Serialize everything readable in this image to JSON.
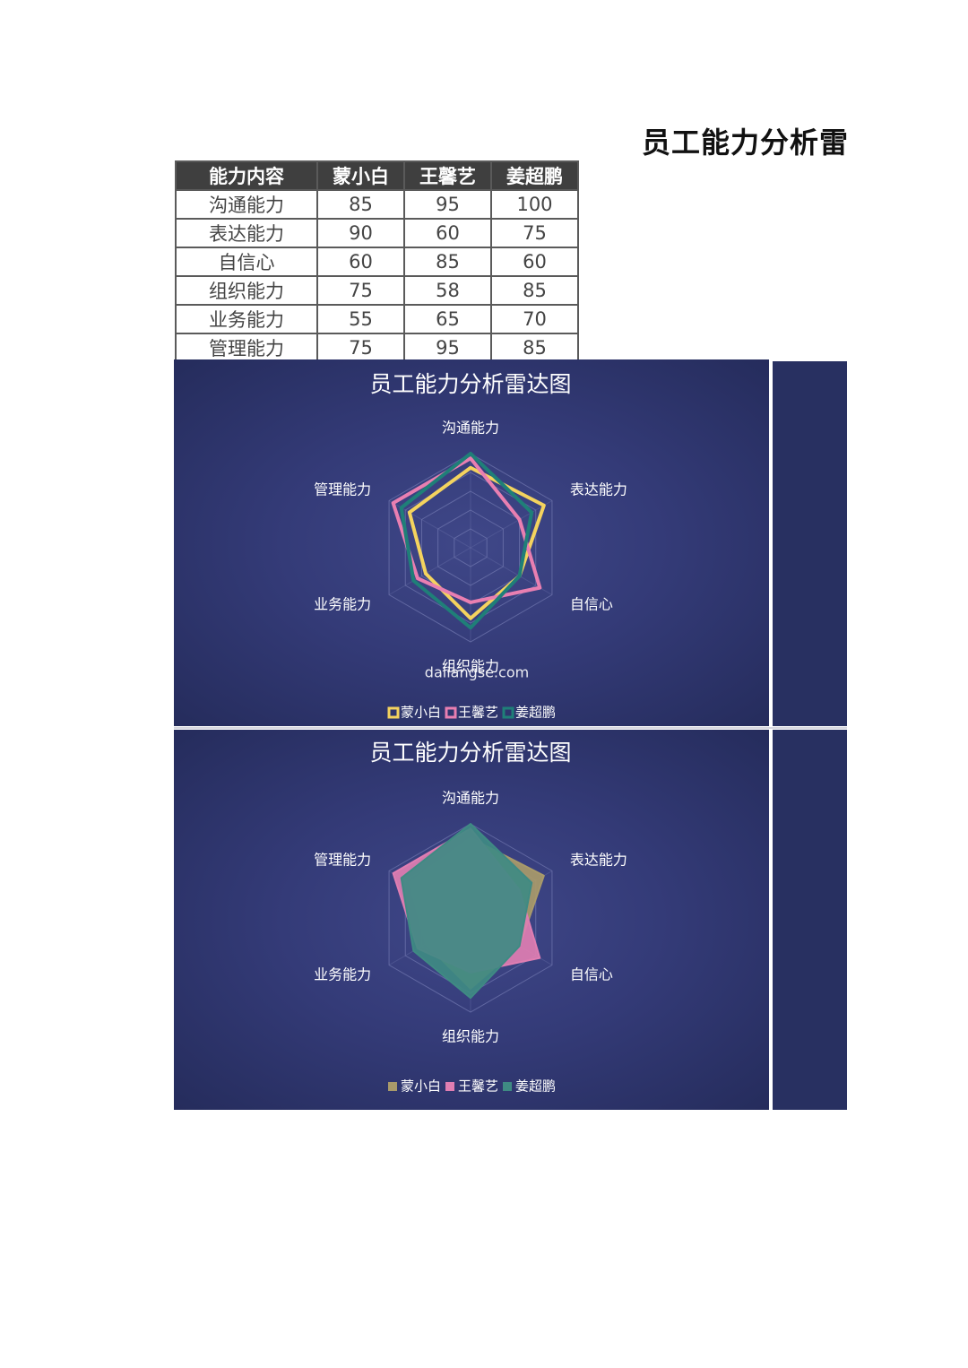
{
  "page": {
    "title": "员工能力分析雷"
  },
  "table": {
    "headers": [
      "能力内容",
      "蒙小白",
      "王馨艺",
      "姜超鹏"
    ],
    "rows": [
      [
        "沟通能力",
        "85",
        "95",
        "100"
      ],
      [
        "表达能力",
        "90",
        "60",
        "75"
      ],
      [
        "自信心",
        "60",
        "85",
        "60"
      ],
      [
        "组织能力",
        "75",
        "58",
        "85"
      ],
      [
        "业务能力",
        "55",
        "65",
        "70"
      ],
      [
        "管理能力",
        "75",
        "95",
        "85"
      ]
    ]
  },
  "watermark": "daliangse.com",
  "chart_data": [
    {
      "type": "radar",
      "style": "line",
      "title": "员工能力分析雷达图",
      "categories": [
        "沟通能力",
        "表达能力",
        "自信心",
        "组织能力",
        "业务能力",
        "管理能力"
      ],
      "series": [
        {
          "name": "蒙小白",
          "values": [
            85,
            90,
            60,
            75,
            55,
            75
          ],
          "color": "#f4d35e"
        },
        {
          "name": "王馨艺",
          "values": [
            95,
            60,
            85,
            58,
            65,
            95
          ],
          "color": "#e97fb1"
        },
        {
          "name": "姜超鹏",
          "values": [
            100,
            75,
            60,
            85,
            70,
            85
          ],
          "color": "#1f7f78"
        }
      ],
      "range": [
        0,
        100
      ],
      "rings": 5,
      "legend": "bottom"
    },
    {
      "type": "radar",
      "style": "filled",
      "title": "员工能力分析雷达图",
      "categories": [
        "沟通能力",
        "表达能力",
        "自信心",
        "组织能力",
        "业务能力",
        "管理能力"
      ],
      "series": [
        {
          "name": "蒙小白",
          "values": [
            85,
            90,
            60,
            75,
            55,
            75
          ],
          "color": "#a99a6a"
        },
        {
          "name": "王馨艺",
          "values": [
            95,
            60,
            85,
            58,
            65,
            95
          ],
          "color": "#e07eb2"
        },
        {
          "name": "姜超鹏",
          "values": [
            100,
            75,
            60,
            85,
            70,
            85
          ],
          "color": "#3f8a83"
        }
      ],
      "range": [
        0,
        100
      ],
      "rings": 5,
      "legend": "bottom"
    }
  ]
}
